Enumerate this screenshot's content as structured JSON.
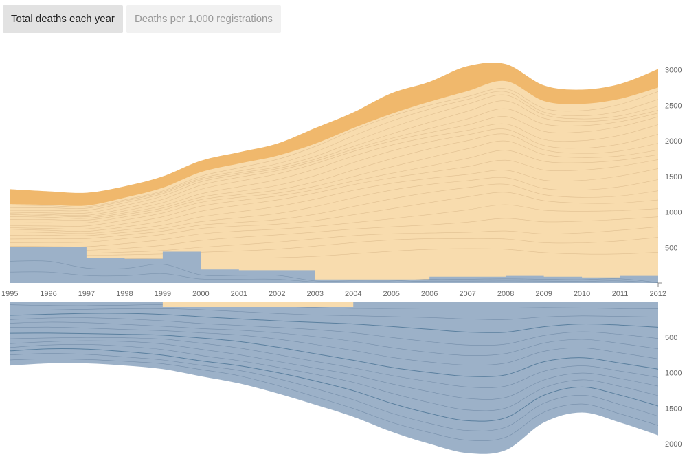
{
  "tabs": [
    {
      "label": "Total deaths each year",
      "active": true
    },
    {
      "label": "Deaths per 1,000 registrations",
      "active": false
    }
  ],
  "colors": {
    "top_band": "#f0b86c",
    "main_fill": "#f8dcae",
    "blue_fill": "#9cb1c8",
    "stream_line": "#d9b88a",
    "blue_line": "#6d87a3",
    "blue_dark_line": "#4f7796",
    "axis_text": "#666666"
  },
  "chart_data": [
    {
      "type": "area",
      "x": [
        1995,
        1996,
        1997,
        1998,
        1999,
        2000,
        2001,
        2002,
        2003,
        2004,
        2005,
        2006,
        2007,
        2008,
        2009,
        2010,
        2011,
        2012
      ],
      "series": [
        {
          "values": [
            1320,
            1290,
            1270,
            1360,
            1500,
            1720,
            1840,
            1960,
            2180,
            2400,
            2670,
            2830,
            3050,
            3080,
            2780,
            2720,
            2800,
            3010
          ]
        },
        {
          "values": [
            1110,
            1100,
            1090,
            1200,
            1340,
            1560,
            1680,
            1790,
            1960,
            2180,
            2380,
            2550,
            2700,
            2840,
            2560,
            2520,
            2590,
            2750
          ]
        },
        {
          "values": [
            510,
            510,
            350,
            340,
            440,
            190,
            180,
            180,
            50,
            50,
            50,
            90,
            90,
            100,
            90,
            80,
            100,
            10
          ]
        }
      ],
      "ylim": [
        0,
        3000
      ],
      "ytick_labels": [
        "500",
        "1000",
        "1500",
        "2000",
        "2500",
        "3000"
      ],
      "xtick_labels": [
        "1995",
        "1996",
        "1997",
        "1998",
        "1999",
        "2000",
        "2001",
        "2002",
        "2003",
        "2004",
        "2005",
        "2006",
        "2007",
        "2008",
        "2009",
        "2010",
        "2011",
        "2012"
      ]
    },
    {
      "type": "area",
      "x": [
        1995,
        1996,
        1997,
        1998,
        1999,
        2000,
        2001,
        2002,
        2003,
        2004,
        2005,
        2006,
        2007,
        2008,
        2009,
        2010,
        2011,
        2012
      ],
      "series": [
        {
          "values": [
            900,
            870,
            870,
            900,
            950,
            1050,
            1150,
            1290,
            1450,
            1620,
            1830,
            2000,
            2130,
            2090,
            1700,
            1560,
            1700,
            1880
          ]
        }
      ],
      "ylim": [
        0,
        2000
      ],
      "inverted": true,
      "ytick_labels": [
        "500",
        "1000",
        "1500",
        "2000"
      ]
    }
  ]
}
